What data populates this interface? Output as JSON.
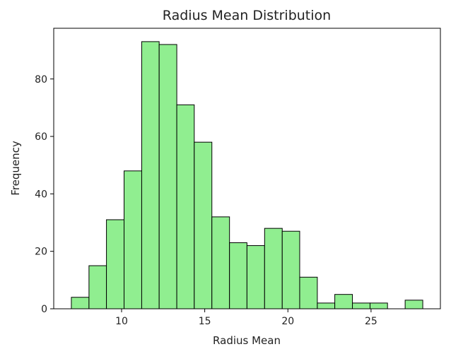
{
  "chart_data": {
    "type": "bar",
    "title": "Radius Mean Distribution",
    "xlabel": "Radius Mean",
    "ylabel": "Frequency",
    "bins": [
      {
        "x0": 6.98,
        "x1": 8.04,
        "count": 4
      },
      {
        "x0": 8.04,
        "x1": 9.09,
        "count": 15
      },
      {
        "x0": 9.09,
        "x1": 10.15,
        "count": 31
      },
      {
        "x0": 10.15,
        "x1": 11.21,
        "count": 48
      },
      {
        "x0": 11.21,
        "x1": 12.26,
        "count": 93
      },
      {
        "x0": 12.26,
        "x1": 13.32,
        "count": 92
      },
      {
        "x0": 13.32,
        "x1": 14.37,
        "count": 71
      },
      {
        "x0": 14.37,
        "x1": 15.43,
        "count": 58
      },
      {
        "x0": 15.43,
        "x1": 16.49,
        "count": 32
      },
      {
        "x0": 16.49,
        "x1": 17.54,
        "count": 23
      },
      {
        "x0": 17.54,
        "x1": 18.6,
        "count": 22
      },
      {
        "x0": 18.6,
        "x1": 19.66,
        "count": 28
      },
      {
        "x0": 19.66,
        "x1": 20.71,
        "count": 27
      },
      {
        "x0": 20.71,
        "x1": 21.77,
        "count": 11
      },
      {
        "x0": 21.77,
        "x1": 22.82,
        "count": 2
      },
      {
        "x0": 22.82,
        "x1": 23.88,
        "count": 5
      },
      {
        "x0": 23.88,
        "x1": 24.94,
        "count": 2
      },
      {
        "x0": 24.94,
        "x1": 25.99,
        "count": 2
      },
      {
        "x0": 25.99,
        "x1": 27.05,
        "count": 0
      },
      {
        "x0": 27.05,
        "x1": 28.11,
        "count": 3
      }
    ],
    "xlim": [
      5.92,
      29.17
    ],
    "ylim": [
      0,
      97.65
    ],
    "xticks": [
      10,
      15,
      20,
      25
    ],
    "yticks": [
      0,
      20,
      40,
      60,
      80
    ],
    "bar_color": "#90ee90",
    "edge_color": "#000000",
    "grid": false,
    "legend": "none"
  }
}
